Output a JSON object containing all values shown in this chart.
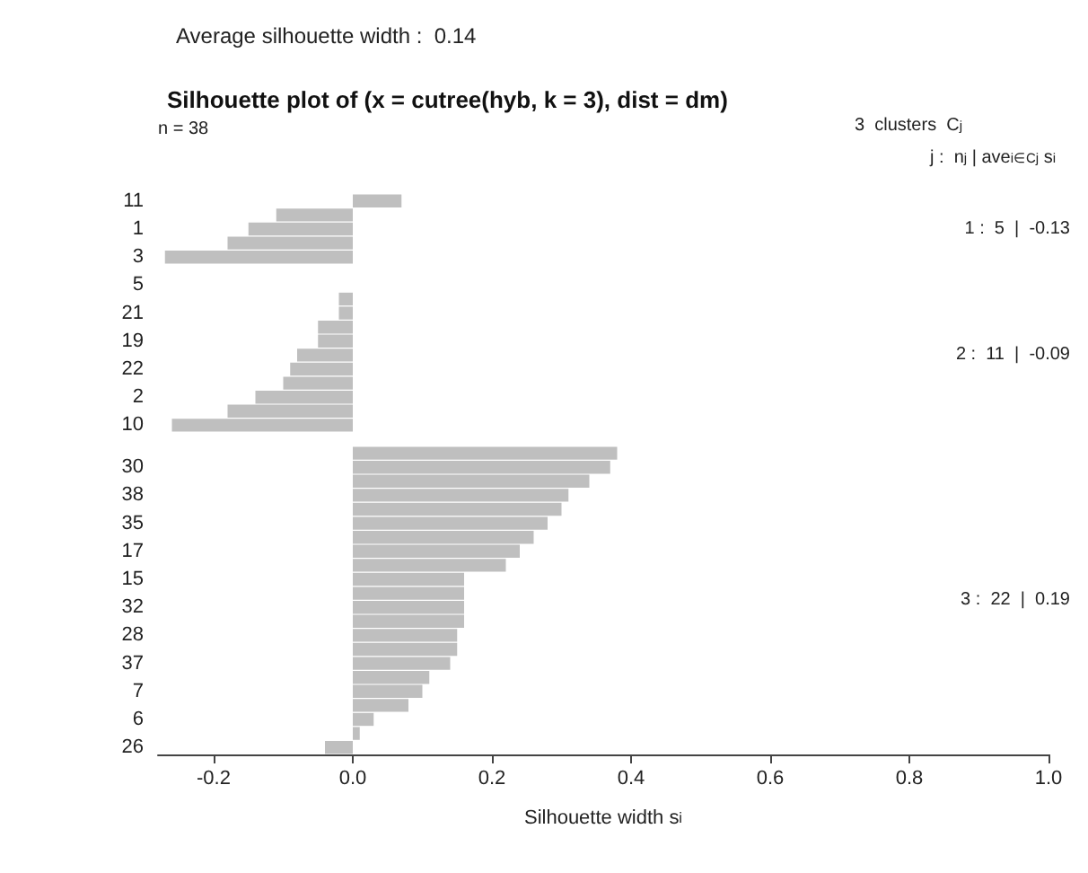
{
  "chart_data": {
    "type": "bar",
    "orientation": "horizontal",
    "title": "Silhouette plot of (x = cutree(hyb, k = 3), dist = dm)",
    "xlabel": "Silhouette width s$_{i}$",
    "annotations": [
      "Average silhouette width :  0.14",
      "n = 38",
      "3  clusters  C$_{j}$",
      "j :  n$_{j}$ | ave$_{i∈Cj}$ s$_{i}$",
      "1 :  5  |  -0.13",
      "2 :  11  |  -0.09",
      "3 :  22  |  0.19"
    ],
    "categories": [
      "11",
      null,
      "1",
      null,
      "3",
      null,
      "5",
      null,
      "21",
      null,
      "19",
      null,
      "22",
      null,
      "2",
      null,
      "10",
      null,
      null,
      "30",
      null,
      "38",
      null,
      "35",
      null,
      "17",
      null,
      "15",
      null,
      "32",
      null,
      "28",
      null,
      "37",
      null,
      "7",
      null,
      "6",
      null,
      "26"
    ],
    "values": [
      0.07,
      -0.11,
      -0.15,
      -0.18,
      -0.27,
      null,
      0,
      -0.02,
      -0.02,
      -0.05,
      -0.05,
      -0.08,
      -0.09,
      -0.1,
      -0.14,
      -0.18,
      -0.26,
      null,
      0.38,
      0.37,
      0.34,
      0.31,
      0.3,
      0.28,
      0.26,
      0.24,
      0.22,
      0.16,
      0.16,
      0.16,
      0.16,
      0.15,
      0.15,
      0.14,
      0.11,
      0.1,
      0.08,
      0.03,
      0.01,
      -0.04
    ],
    "color": "#bfbfbf",
    "xlim": [
      -0.28,
      1.0
    ],
    "xticks": [
      -0.2,
      {
        "value": 0,
        "label": "0.0"
      },
      0.2,
      0.4,
      0.6,
      0.8,
      {
        "value": 1,
        "label": "1.0"
      }
    ],
    "grid": false
  }
}
